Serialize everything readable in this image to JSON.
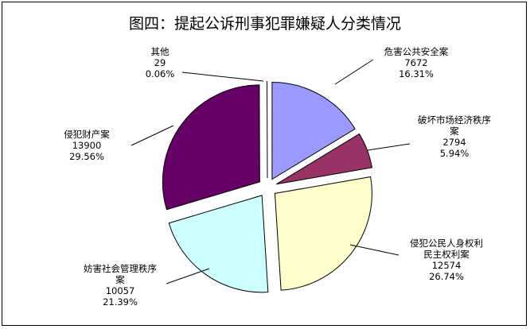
{
  "chart_data": {
    "type": "pie",
    "title": "图四：提起公诉刑事犯罪嫌疑人分类情况",
    "exploded": true,
    "slices": [
      {
        "name": "危害公共安全案",
        "name_lines": [
          "危害公共安全案"
        ],
        "value": 7672,
        "percent": "16.31%",
        "color": "#9999ff"
      },
      {
        "name": "破坏市场经济秩序案",
        "name_lines": [
          "破坏市场经济秩序",
          "案"
        ],
        "value": 2794,
        "percent": "5.94%",
        "color": "#993366"
      },
      {
        "name": "侵犯公民人身权利民主权利案",
        "name_lines": [
          "侵犯公民人身权利",
          "民主权利案"
        ],
        "value": 12574,
        "percent": "26.74%",
        "color": "#ffffcc"
      },
      {
        "name": "妨害社会管理秩序案",
        "name_lines": [
          "妨害社会管理秩序",
          "案"
        ],
        "value": 10057,
        "percent": "21.39%",
        "color": "#ccffff"
      },
      {
        "name": "侵犯财产案",
        "name_lines": [
          "侵犯财产案"
        ],
        "value": 13900,
        "percent": "29.56%",
        "color": "#660066"
      },
      {
        "name": "其他",
        "name_lines": [
          "其他"
        ],
        "value": 29,
        "percent": "0.06%",
        "color": "#ffffff"
      }
    ]
  }
}
